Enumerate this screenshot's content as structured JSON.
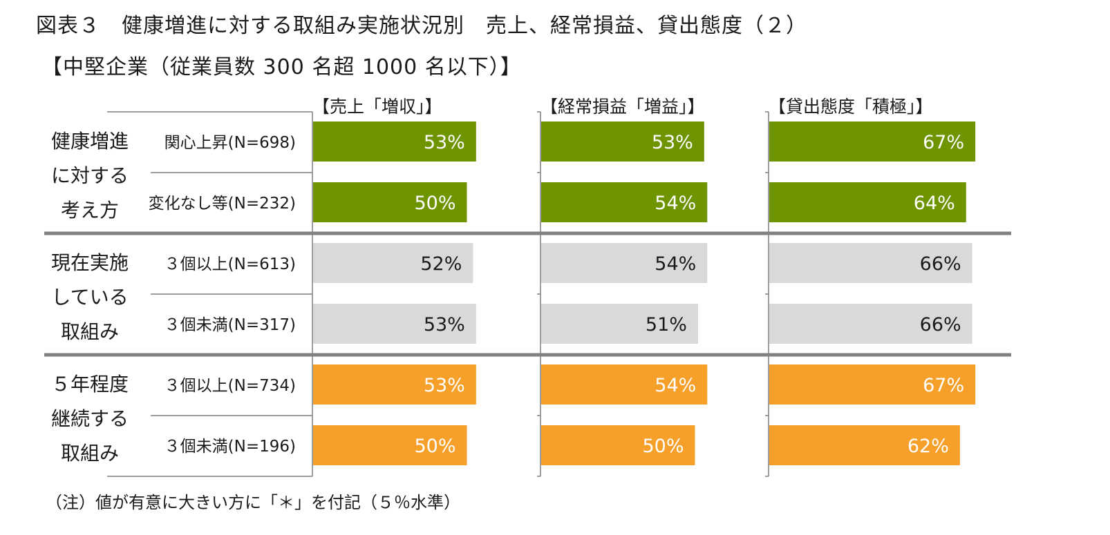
{
  "title": "図表３　健康増進に対する取組み実施状況別　売上、経常損益、貸出態度（２）",
  "subtitle": "【中堅企業（従業員数 300 名超 1000 名以下）】",
  "footnote": "（注）値が有意に大きい方に「＊」を付記（５％水準）",
  "chart_data": {
    "type": "bar",
    "orientation": "horizontal",
    "panels": [
      "【売上「増収」】",
      "【経常損益「増益」】",
      "【貸出態度「積極」】"
    ],
    "groups": [
      {
        "label_lines": [
          "健康増進",
          "に対する",
          "考え方"
        ],
        "color": "#6e9400",
        "label_color": "#ffffff",
        "rows": [
          {
            "label": "関心上昇(N=698)",
            "values": [
              53,
              53,
              67
            ]
          },
          {
            "label": "変化なし等(N=232)",
            "values": [
              50,
              54,
              64
            ]
          }
        ]
      },
      {
        "label_lines": [
          "現在実施",
          "している",
          "取組み"
        ],
        "color": "#d9d9d9",
        "label_color": "#1a1a1a",
        "rows": [
          {
            "label": "３個以上(N=613)",
            "values": [
              52,
              54,
              66
            ]
          },
          {
            "label": "３個未満(N=317)",
            "values": [
              53,
              51,
              66
            ]
          }
        ]
      },
      {
        "label_lines": [
          "５年程度",
          "継続する",
          "取組み"
        ],
        "color": "#f6a02a",
        "label_color": "#ffffff",
        "rows": [
          {
            "label": "３個以上(N=734)",
            "values": [
              53,
              54,
              67
            ]
          },
          {
            "label": "３個未満(N=196)",
            "values": [
              50,
              50,
              62
            ]
          }
        ]
      }
    ],
    "unit": "%",
    "grid": false,
    "legend": "none"
  }
}
